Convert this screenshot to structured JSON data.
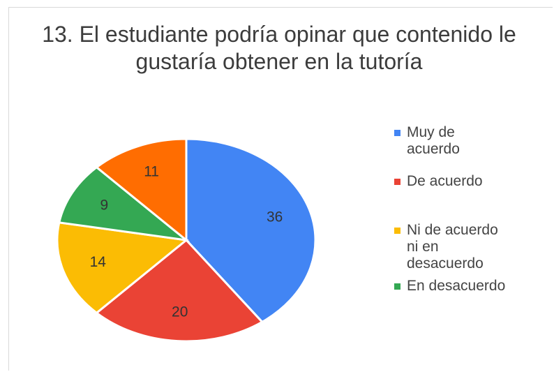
{
  "chart_data": {
    "type": "pie",
    "title": "13. El estudiante podría opinar que contenido le gustaría obtener en la tutoría",
    "categories": [
      "Muy de acuerdo",
      "De acuerdo",
      "Ni de acuerdo ni en desacuerdo",
      "En desacuerdo",
      null
    ],
    "values": [
      36,
      20,
      14,
      9,
      11
    ],
    "colors": [
      "#4285f4",
      "#ea4335",
      "#fbbc04",
      "#34a853",
      "#ff6d01"
    ],
    "legend": "right"
  }
}
